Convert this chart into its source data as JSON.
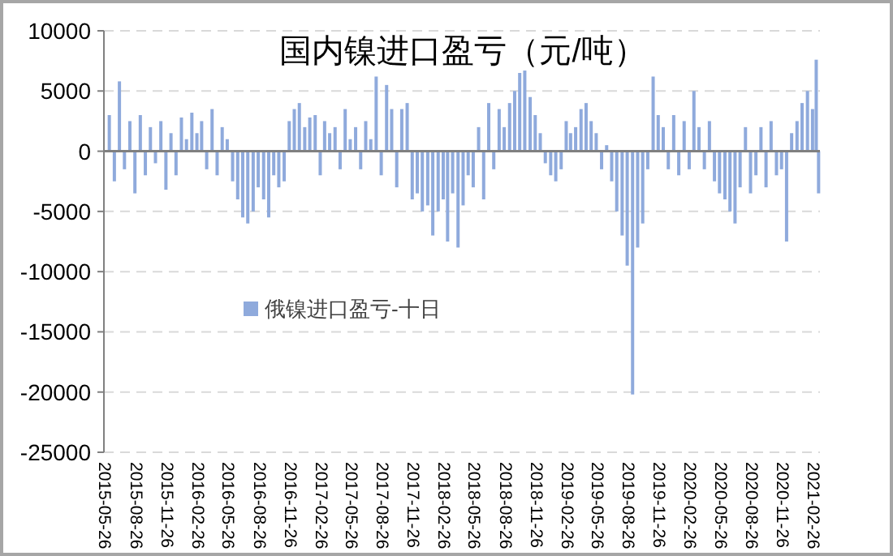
{
  "chart_data": {
    "type": "bar",
    "title": "国内镍进口盈亏（元/吨）",
    "x": [
      "2015-06-05",
      "2015-06-20",
      "2015-07-05",
      "2015-07-20",
      "2015-08-05",
      "2015-08-20",
      "2015-09-05",
      "2015-09-20",
      "2015-10-05",
      "2015-10-20",
      "2015-11-05",
      "2015-11-20",
      "2015-12-05",
      "2015-12-20",
      "2016-01-05",
      "2016-01-20",
      "2016-02-05",
      "2016-02-20",
      "2016-03-05",
      "2016-03-20",
      "2016-04-05",
      "2016-04-20",
      "2016-05-05",
      "2016-05-20",
      "2016-06-05",
      "2016-06-20",
      "2016-07-05",
      "2016-07-20",
      "2016-08-05",
      "2016-08-20",
      "2016-09-05",
      "2016-09-20",
      "2016-10-05",
      "2016-10-20",
      "2016-11-05",
      "2016-11-20",
      "2016-12-05",
      "2016-12-20",
      "2017-01-05",
      "2017-01-20",
      "2017-02-05",
      "2017-02-20",
      "2017-03-05",
      "2017-03-20",
      "2017-04-05",
      "2017-04-20",
      "2017-05-05",
      "2017-05-20",
      "2017-06-05",
      "2017-06-20",
      "2017-07-05",
      "2017-07-20",
      "2017-08-05",
      "2017-08-20",
      "2017-09-05",
      "2017-09-20",
      "2017-10-05",
      "2017-10-20",
      "2017-11-05",
      "2017-11-20",
      "2017-12-05",
      "2017-12-20",
      "2018-01-05",
      "2018-01-20",
      "2018-02-05",
      "2018-02-20",
      "2018-03-05",
      "2018-03-20",
      "2018-04-05",
      "2018-04-20",
      "2018-05-05",
      "2018-05-20",
      "2018-06-05",
      "2018-06-20",
      "2018-07-05",
      "2018-07-20",
      "2018-08-05",
      "2018-08-20",
      "2018-09-05",
      "2018-09-20",
      "2018-10-05",
      "2018-10-20",
      "2018-11-05",
      "2018-11-20",
      "2018-12-05",
      "2018-12-20",
      "2019-01-05",
      "2019-01-20",
      "2019-02-05",
      "2019-02-20",
      "2019-03-05",
      "2019-03-20",
      "2019-04-05",
      "2019-04-20",
      "2019-05-05",
      "2019-05-20",
      "2019-06-05",
      "2019-06-20",
      "2019-07-05",
      "2019-07-20",
      "2019-08-05",
      "2019-08-20",
      "2019-09-05",
      "2019-09-20",
      "2019-10-05",
      "2019-10-20",
      "2019-11-05",
      "2019-11-20",
      "2019-12-05",
      "2019-12-20",
      "2020-01-05",
      "2020-01-20",
      "2020-02-05",
      "2020-02-20",
      "2020-03-05",
      "2020-03-20",
      "2020-04-05",
      "2020-04-20",
      "2020-05-05",
      "2020-05-20",
      "2020-06-05",
      "2020-06-20",
      "2020-07-05",
      "2020-07-20",
      "2020-08-05",
      "2020-08-20",
      "2020-09-05",
      "2020-09-20",
      "2020-10-05",
      "2020-10-20",
      "2020-11-05",
      "2020-11-20",
      "2020-12-05",
      "2020-12-20",
      "2021-01-05",
      "2021-01-20",
      "2021-02-05",
      "2021-02-20",
      "2021-03-03",
      "2021-03-10"
    ],
    "series": [
      {
        "name": "俄镍进口盈亏-十日",
        "color": "#8faadc",
        "values": [
          3000,
          -2500,
          5800,
          -1500,
          2500,
          -3500,
          3000,
          -2000,
          2000,
          -1000,
          2500,
          -3200,
          1500,
          -2000,
          2800,
          1000,
          3200,
          1500,
          2500,
          -1500,
          3500,
          -2000,
          2000,
          1000,
          -2500,
          -4000,
          -5500,
          -6000,
          -5000,
          -3000,
          -4000,
          -5500,
          -2000,
          -3000,
          -2500,
          2500,
          3500,
          4000,
          2000,
          2800,
          3000,
          -2000,
          2500,
          1500,
          2000,
          -1500,
          3500,
          1000,
          2000,
          -1500,
          2500,
          1000,
          6200,
          -2000,
          5500,
          3500,
          -3000,
          3500,
          4000,
          -4000,
          -3500,
          -5000,
          -4500,
          -7000,
          -5000,
          -4000,
          -7500,
          -3500,
          -8000,
          -4500,
          -2000,
          -3000,
          2000,
          -4000,
          4000,
          -1500,
          3500,
          2000,
          4000,
          5000,
          6500,
          6700,
          4500,
          3000,
          1500,
          -1000,
          -2000,
          -2500,
          -1500,
          2500,
          1500,
          2000,
          3500,
          4000,
          2500,
          1500,
          -1500,
          500,
          -2500,
          -5000,
          -7000,
          -9500,
          -20200,
          -8000,
          -6000,
          -1500,
          6200,
          3000,
          2000,
          -1500,
          3000,
          -2000,
          2500,
          -1500,
          5000,
          2000,
          -1500,
          2500,
          -2500,
          -3500,
          -4000,
          -5000,
          -6000,
          -3000,
          2000,
          -3500,
          -2000,
          2000,
          -3000,
          2500,
          -2000,
          -1500,
          -7500,
          1500,
          2500,
          4000,
          5000,
          3500,
          7600,
          -3500
        ]
      }
    ],
    "xlim": [
      "2015-05-20",
      "2021-03-14"
    ],
    "xticks": [
      "2015-05-26",
      "2015-08-26",
      "2015-11-26",
      "2016-02-26",
      "2016-05-26",
      "2016-08-26",
      "2016-11-26",
      "2017-02-26",
      "2017-05-26",
      "2017-08-26",
      "2017-11-26",
      "2018-02-26",
      "2018-05-26",
      "2018-08-26",
      "2018-11-26",
      "2019-02-26",
      "2019-05-26",
      "2019-08-26",
      "2019-11-26",
      "2020-02-26",
      "2020-05-26",
      "2020-08-26",
      "2020-11-26",
      "2021-02-26"
    ],
    "ylim": [
      -25000,
      10000
    ],
    "yticks": [
      -25000,
      -20000,
      -15000,
      -10000,
      -5000,
      0,
      5000,
      10000
    ],
    "grid": "y",
    "legend": "left"
  }
}
